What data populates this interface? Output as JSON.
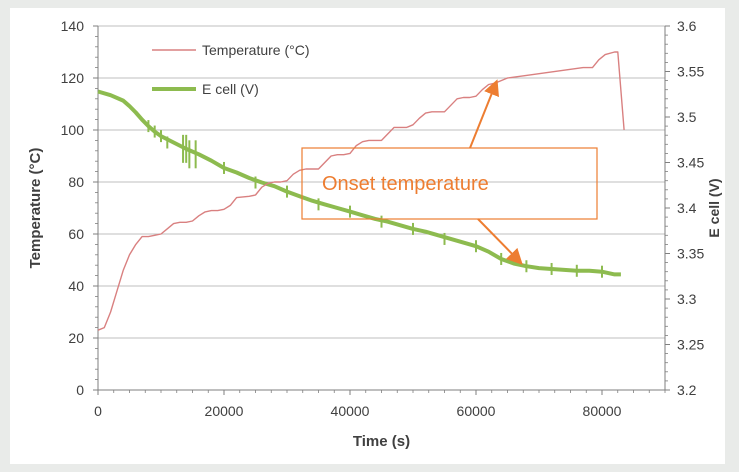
{
  "chart_data": {
    "type": "line",
    "title": "",
    "xlabel": "Time (s)",
    "ylabel_left": "Temperature (°C)",
    "ylabel_right": "E cell (V)",
    "xlim": [
      0,
      90000
    ],
    "xticks": [
      "0",
      "20000",
      "40000",
      "60000",
      "80000"
    ],
    "ylim_left": [
      0,
      140
    ],
    "yticks_left": [
      "0",
      "20",
      "40",
      "60",
      "80",
      "100",
      "120",
      "140"
    ],
    "ylim_right": [
      3.2,
      3.6
    ],
    "yticks_right": [
      "3.2",
      "3.25",
      "3.3",
      "3.35",
      "3.4",
      "3.45",
      "3.5",
      "3.55",
      "3.6"
    ],
    "grid": true,
    "legend_position": "top-left",
    "series": [
      {
        "name": "Temperature (°C)",
        "axis": "left",
        "color": "#d98080",
        "x": [
          0,
          1000,
          2000,
          3000,
          4000,
          5000,
          6000,
          7000,
          8000,
          9000,
          10000,
          11000,
          12000,
          13000,
          14000,
          15000,
          16000,
          17000,
          18000,
          19000,
          20000,
          21000,
          22000,
          24000,
          25000,
          26000,
          27000,
          28000,
          29000,
          30000,
          31000,
          32000,
          33000,
          34000,
          35000,
          36000,
          37000,
          38000,
          39000,
          40000,
          41000,
          42000,
          43000,
          44000,
          45000,
          46000,
          47000,
          48000,
          49000,
          50000,
          51000,
          52000,
          53000,
          54000,
          55000,
          56000,
          57000,
          58000,
          59000,
          60000,
          61000,
          62000,
          63000,
          64000,
          65000,
          68000,
          71000,
          74000,
          77000,
          78500,
          79500,
          80500,
          82000,
          82500,
          83500
        ],
        "y": [
          23,
          24,
          30,
          38,
          46,
          52,
          56,
          59,
          59,
          59.5,
          60,
          62,
          64,
          64.5,
          64.5,
          65,
          67,
          68.5,
          69,
          69,
          69.5,
          71,
          74,
          74.5,
          75,
          78,
          79.5,
          80,
          80,
          80.5,
          83,
          84.5,
          85,
          85,
          85,
          87.5,
          90,
          90.5,
          90.5,
          91,
          94,
          95.5,
          96,
          96,
          96,
          98.5,
          101,
          101,
          101,
          102,
          104.5,
          106.5,
          107,
          107,
          107,
          109.5,
          112,
          112.5,
          112.5,
          113,
          115.5,
          117.5,
          118,
          119,
          120,
          121,
          122,
          123,
          124,
          124,
          127,
          129,
          130,
          130,
          100
        ]
      },
      {
        "name": "E cell (V)",
        "axis": "right",
        "color": "#8dbb4f",
        "x": [
          0,
          2000,
          4000,
          5000,
          6000,
          7000,
          8000,
          9000,
          10000,
          12000,
          14000,
          16000,
          18000,
          20000,
          22000,
          24000,
          26000,
          28000,
          30000,
          32000,
          34000,
          36000,
          38000,
          40000,
          42000,
          44000,
          46000,
          48000,
          50000,
          52000,
          54000,
          56000,
          58000,
          60000,
          62000,
          64000,
          66000,
          68000,
          70000,
          72000,
          74000,
          76000,
          78000,
          80000,
          82000,
          83000
        ],
        "y": [
          3.528,
          3.524,
          3.518,
          3.512,
          3.505,
          3.497,
          3.49,
          3.484,
          3.479,
          3.472,
          3.465,
          3.459,
          3.452,
          3.444,
          3.439,
          3.433,
          3.428,
          3.424,
          3.418,
          3.413,
          3.408,
          3.404,
          3.4,
          3.396,
          3.392,
          3.388,
          3.385,
          3.381,
          3.377,
          3.374,
          3.37,
          3.366,
          3.362,
          3.358,
          3.352,
          3.344,
          3.339,
          3.336,
          3.334,
          3.333,
          3.332,
          3.331,
          3.331,
          3.33,
          3.327,
          3.327
        ]
      }
    ],
    "annotations": [
      {
        "text": "Onset temperature",
        "color": "#ed7d31"
      }
    ]
  },
  "colors": {
    "temperature": "#d98080",
    "ecell": "#8dbb4f",
    "annotation": "#ed7d31",
    "grid": "#bfbfbf",
    "axis": "#7f7f7f",
    "text": "#404040"
  }
}
